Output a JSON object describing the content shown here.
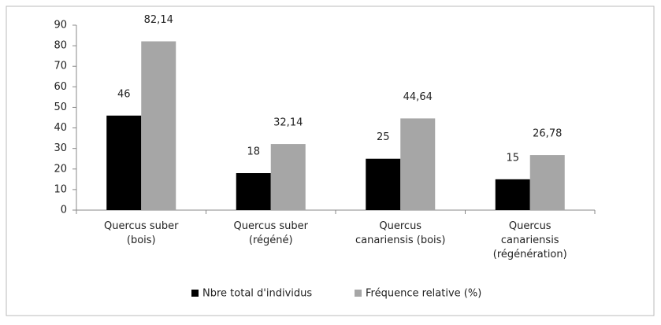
{
  "chart_data": {
    "type": "bar",
    "categories": [
      "Quercus suber\n(bois)",
      "Quercus suber\n(régéné)",
      "Quercus\ncanariensis (bois)",
      "Quercus\ncanariensis\n(régénération)"
    ],
    "series": [
      {
        "name": "Nbre total d'individus",
        "color": "#000000",
        "values": [
          46,
          18,
          25,
          15
        ],
        "value_labels": [
          "46",
          "18",
          "25",
          "15"
        ]
      },
      {
        "name": "Fréquence relative (%)",
        "color": "#a6a6a6",
        "values": [
          82.14,
          32.14,
          44.64,
          26.78
        ],
        "value_labels": [
          "82,14",
          "32,14",
          "44,64",
          "26,78"
        ]
      }
    ],
    "ylim": [
      0,
      90
    ],
    "yticks": [
      0,
      10,
      20,
      30,
      40,
      50,
      60,
      70,
      80,
      90
    ],
    "grid": false,
    "legend": "bottom"
  }
}
